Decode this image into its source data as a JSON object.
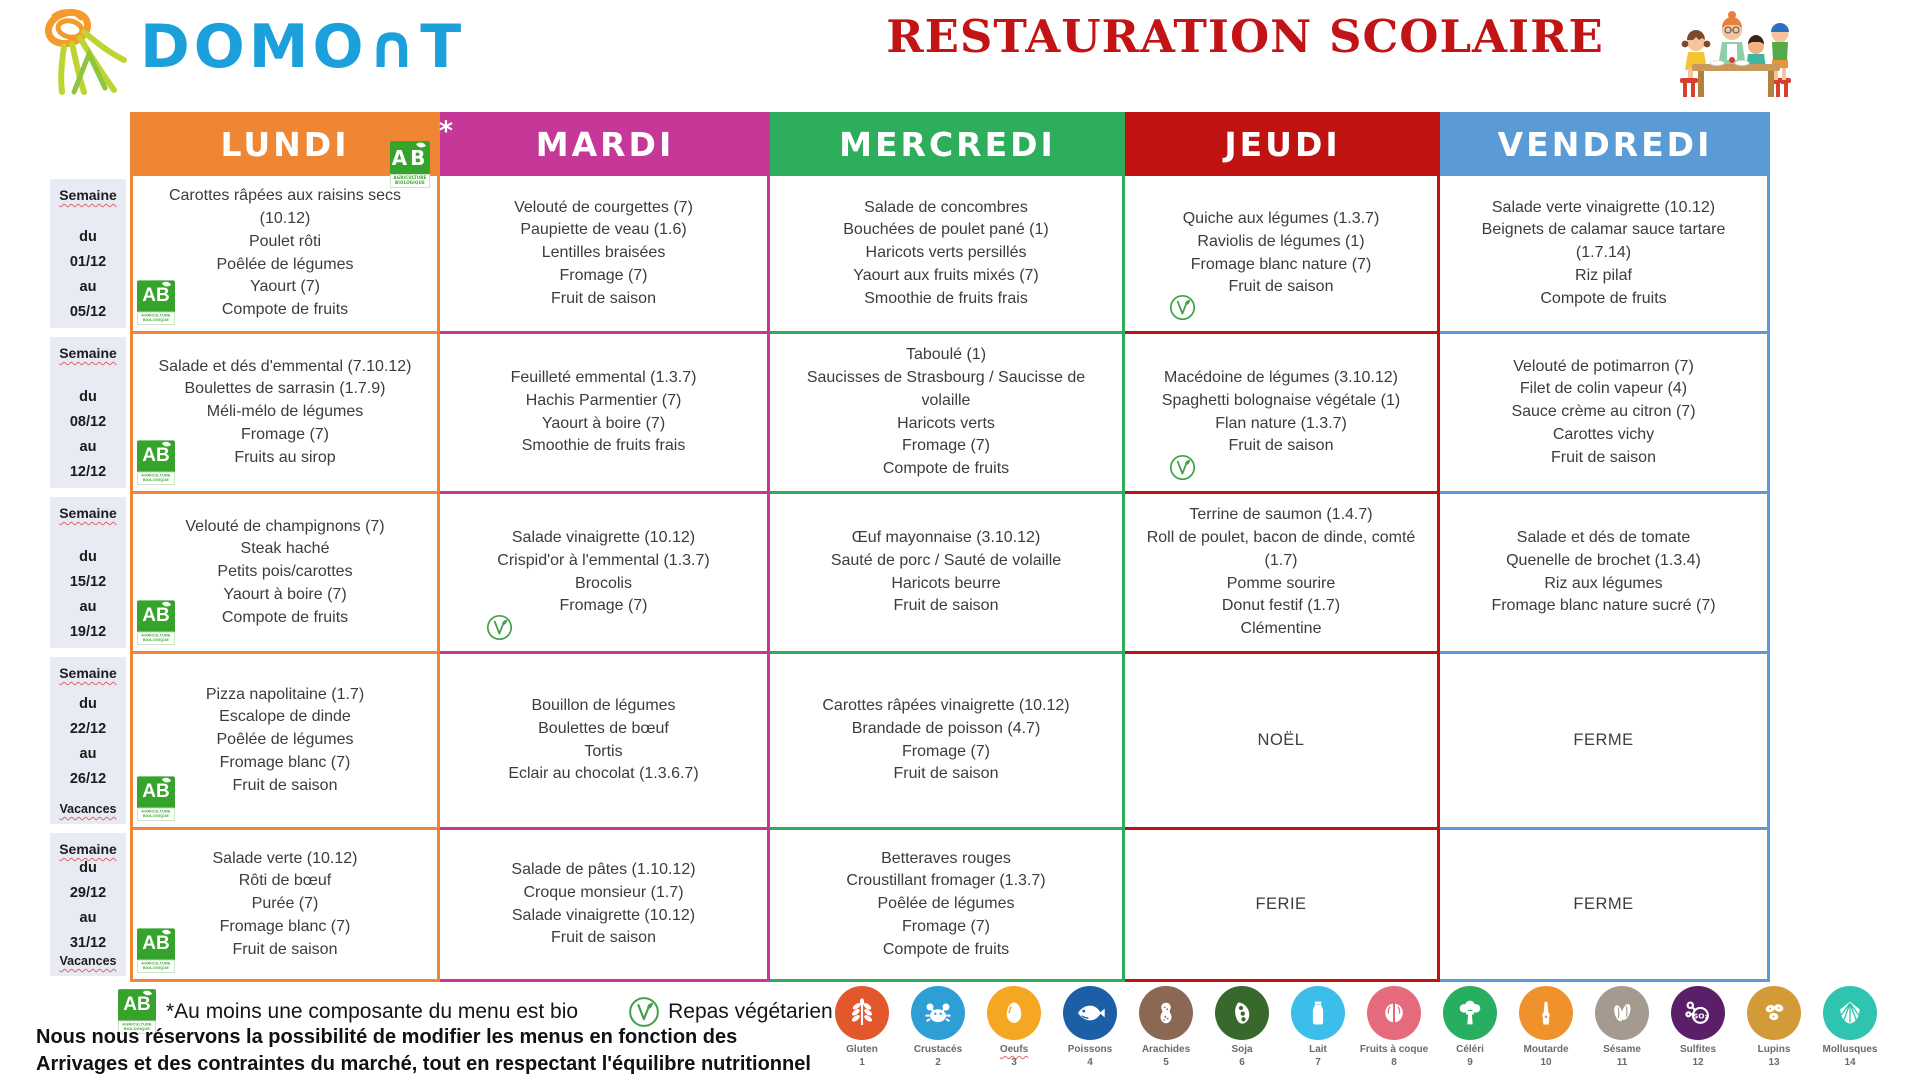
{
  "header": {
    "logo_text": "DOMO∩T",
    "title": "RESTAURATION SCOLAIRE"
  },
  "bio_badge": {
    "text": "AB",
    "strip_line1": "AGRICULTURE",
    "strip_line2": "BIOLOGIQUE"
  },
  "header_bio_asterisk": "*",
  "days": [
    {
      "key": "lundi",
      "label": "LUNDI",
      "color": "#EE8633",
      "bio_badge_in_header": true
    },
    {
      "key": "mardi",
      "label": "MARDI",
      "color": "#C53897"
    },
    {
      "key": "mercredi",
      "label": "MERCREDI",
      "color": "#2EAD5C"
    },
    {
      "key": "jeudi",
      "label": "JEUDI",
      "color": "#C11212"
    },
    {
      "key": "vendredi",
      "label": "VENDREDI",
      "color": "#5B9BD5"
    }
  ],
  "weeks": [
    {
      "label": "Semaine",
      "dates": [
        "du",
        "01/12",
        "au",
        "05/12"
      ],
      "vacances": "",
      "menus": {
        "lundi": {
          "bio": true,
          "items": [
            "Carottes râpées aux raisins secs (10.12)",
            "Poulet rôti",
            "Poêlée de légumes",
            "Yaourt (7)",
            "Compote de fruits"
          ]
        },
        "mardi": {
          "items": [
            "Velouté de courgettes (7)",
            "Paupiette de veau (1.6)",
            "Lentilles braisées",
            "Fromage (7)",
            "Fruit de saison"
          ]
        },
        "mercredi": {
          "items": [
            "Salade de concombres",
            "Bouchées de poulet pané (1)",
            "Haricots verts persillés",
            "Yaourt aux fruits mixés (7)",
            "Smoothie de fruits frais"
          ]
        },
        "jeudi": {
          "veg": true,
          "items": [
            "Quiche aux légumes (1.3.7)",
            "Raviolis de légumes (1)",
            "Fromage blanc nature (7)",
            "Fruit de saison"
          ]
        },
        "vendredi": {
          "items": [
            "Salade verte vinaigrette (10.12)",
            "Beignets de calamar sauce tartare (1.7.14)",
            "Riz pilaf",
            "Compote de fruits"
          ]
        }
      }
    },
    {
      "label": "Semaine",
      "dates": [
        "du",
        "08/12",
        "au",
        "12/12"
      ],
      "vacances": "",
      "menus": {
        "lundi": {
          "bio": true,
          "items": [
            "Salade et dés d'emmental (7.10.12)",
            "Boulettes de sarrasin (1.7.9)",
            "Méli-mélo de légumes",
            "Fromage (7)",
            "Fruits au sirop"
          ]
        },
        "mardi": {
          "items": [
            "Feuilleté emmental (1.3.7)",
            "Hachis Parmentier (7)",
            "Yaourt à boire (7)",
            "Smoothie de fruits frais"
          ]
        },
        "mercredi": {
          "items": [
            "Taboulé (1)",
            "Saucisses de Strasbourg / Saucisse de volaille",
            "Haricots verts",
            "Fromage (7)",
            "Compote de fruits"
          ]
        },
        "jeudi": {
          "veg": true,
          "items": [
            "Macédoine de légumes (3.10.12)",
            "Spaghetti bolognaise végétale (1)",
            "Flan nature (1.3.7)",
            "Fruit de saison"
          ]
        },
        "vendredi": {
          "items": [
            "Velouté de potimarron (7)",
            "Filet de colin vapeur (4)",
            "Sauce crème au citron (7)",
            "Carottes vichy",
            "Fruit de saison"
          ]
        }
      }
    },
    {
      "label": "Semaine",
      "dates": [
        "du",
        "15/12",
        "au",
        "19/12"
      ],
      "vacances": "",
      "menus": {
        "lundi": {
          "bio": true,
          "items": [
            "Velouté de champignons (7)",
            "Steak haché",
            "Petits pois/carottes",
            "Yaourt à boire (7)",
            "Compote de fruits"
          ]
        },
        "mardi": {
          "veg": true,
          "items": [
            "Salade vinaigrette (10.12)",
            "Crispid'or à l'emmental (1.3.7)",
            "Brocolis",
            "Fromage (7)"
          ]
        },
        "mercredi": {
          "items": [
            "Œuf mayonnaise (3.10.12)",
            "Sauté de porc / Sauté de volaille",
            "Haricots beurre",
            "Fruit de saison"
          ]
        },
        "jeudi": {
          "items": [
            "Terrine de saumon (1.4.7)",
            "Roll de poulet, bacon de dinde, comté (1.7)",
            "Pomme sourire",
            "Donut festif (1.7)",
            "Clémentine"
          ]
        },
        "vendredi": {
          "items": [
            "Salade et dés de tomate",
            "Quenelle de brochet (1.3.4)",
            "Riz aux légumes",
            "Fromage blanc nature sucré (7)"
          ]
        }
      }
    },
    {
      "label": "Semaine",
      "dates": [
        "du",
        "22/12",
        "au",
        "26/12"
      ],
      "vacances": "Vacances",
      "menus": {
        "lundi": {
          "bio": true,
          "items": [
            "Pizza napolitaine (1.7)",
            "Escalope de dinde",
            "Poêlée de légumes",
            "Fromage blanc (7)",
            "Fruit de saison"
          ]
        },
        "mardi": {
          "items": [
            "Bouillon de légumes",
            "Boulettes de bœuf",
            "Tortis",
            "Eclair au chocolat (1.3.6.7)"
          ]
        },
        "mercredi": {
          "items": [
            "Carottes râpées vinaigrette (10.12)",
            "Brandade de poisson (4.7)",
            "Fromage (7)",
            "Fruit de saison"
          ]
        },
        "jeudi": {
          "special": "NOËL"
        },
        "vendredi": {
          "special": "FERME"
        }
      }
    },
    {
      "label": "Semaine",
      "dates": [
        "du",
        "29/12",
        "au",
        "31/12"
      ],
      "vacances": "Vacances",
      "menus": {
        "lundi": {
          "bio": true,
          "items": [
            "Salade verte (10.12)",
            "Rôti de bœuf",
            "Purée (7)",
            "Fromage blanc (7)",
            "Fruit de saison"
          ]
        },
        "mardi": {
          "items": [
            "Salade de pâtes (1.10.12)",
            "Croque monsieur (1.7)",
            "Salade vinaigrette (10.12)",
            "Fruit de saison"
          ]
        },
        "mercredi": {
          "items": [
            "Betteraves rouges",
            "Croustillant fromager (1.3.7)",
            "Poêlée de légumes",
            "Fromage (7)",
            "Compote de fruits"
          ]
        },
        "jeudi": {
          "special": "FERIE"
        },
        "vendredi": {
          "special": "FERME"
        }
      }
    }
  ],
  "legend": {
    "bio_text": "*Au moins une composante du menu est bio",
    "veg_text": "Repas végétarien"
  },
  "disclaimer": {
    "line1": "Nous nous réservons la possibilité de modifier les menus en fonction des",
    "line2": "Arrivages et des contraintes du marché, tout en respectant l'équilibre nutritionnel"
  },
  "allergens": [
    {
      "name": "Gluten",
      "number": "1",
      "color": "#E2572B",
      "icon": "wheat"
    },
    {
      "name": "Crustacés",
      "number": "2",
      "color": "#2E9FD4",
      "icon": "crab"
    },
    {
      "name": "Oeufs",
      "number": "3",
      "color": "#F5A623",
      "icon": "egg",
      "underline": true
    },
    {
      "name": "Poissons",
      "number": "4",
      "color": "#1D5FA6",
      "icon": "fish"
    },
    {
      "name": "Arachides",
      "number": "5",
      "color": "#8A6853",
      "icon": "peanut"
    },
    {
      "name": "Soja",
      "number": "6",
      "color": "#39682C",
      "icon": "soy"
    },
    {
      "name": "Lait",
      "number": "7",
      "color": "#3BBEEA",
      "icon": "milk"
    },
    {
      "name": "Fruits à coque",
      "number": "8",
      "color": "#E56B7C",
      "icon": "nut"
    },
    {
      "name": "Céléri",
      "number": "9",
      "color": "#27AE60",
      "icon": "celery"
    },
    {
      "name": "Moutarde",
      "number": "10",
      "color": "#F0922B",
      "icon": "mustard"
    },
    {
      "name": "Sésame",
      "number": "11",
      "color": "#A49A90",
      "icon": "sesame"
    },
    {
      "name": "Sulfites",
      "number": "12",
      "color": "#5B1F69",
      "icon": "sulfites"
    },
    {
      "name": "Lupins",
      "number": "13",
      "color": "#D29B38",
      "icon": "lupin"
    },
    {
      "name": "Mollusques",
      "number": "14",
      "color": "#2EC4B0",
      "icon": "shell"
    }
  ]
}
